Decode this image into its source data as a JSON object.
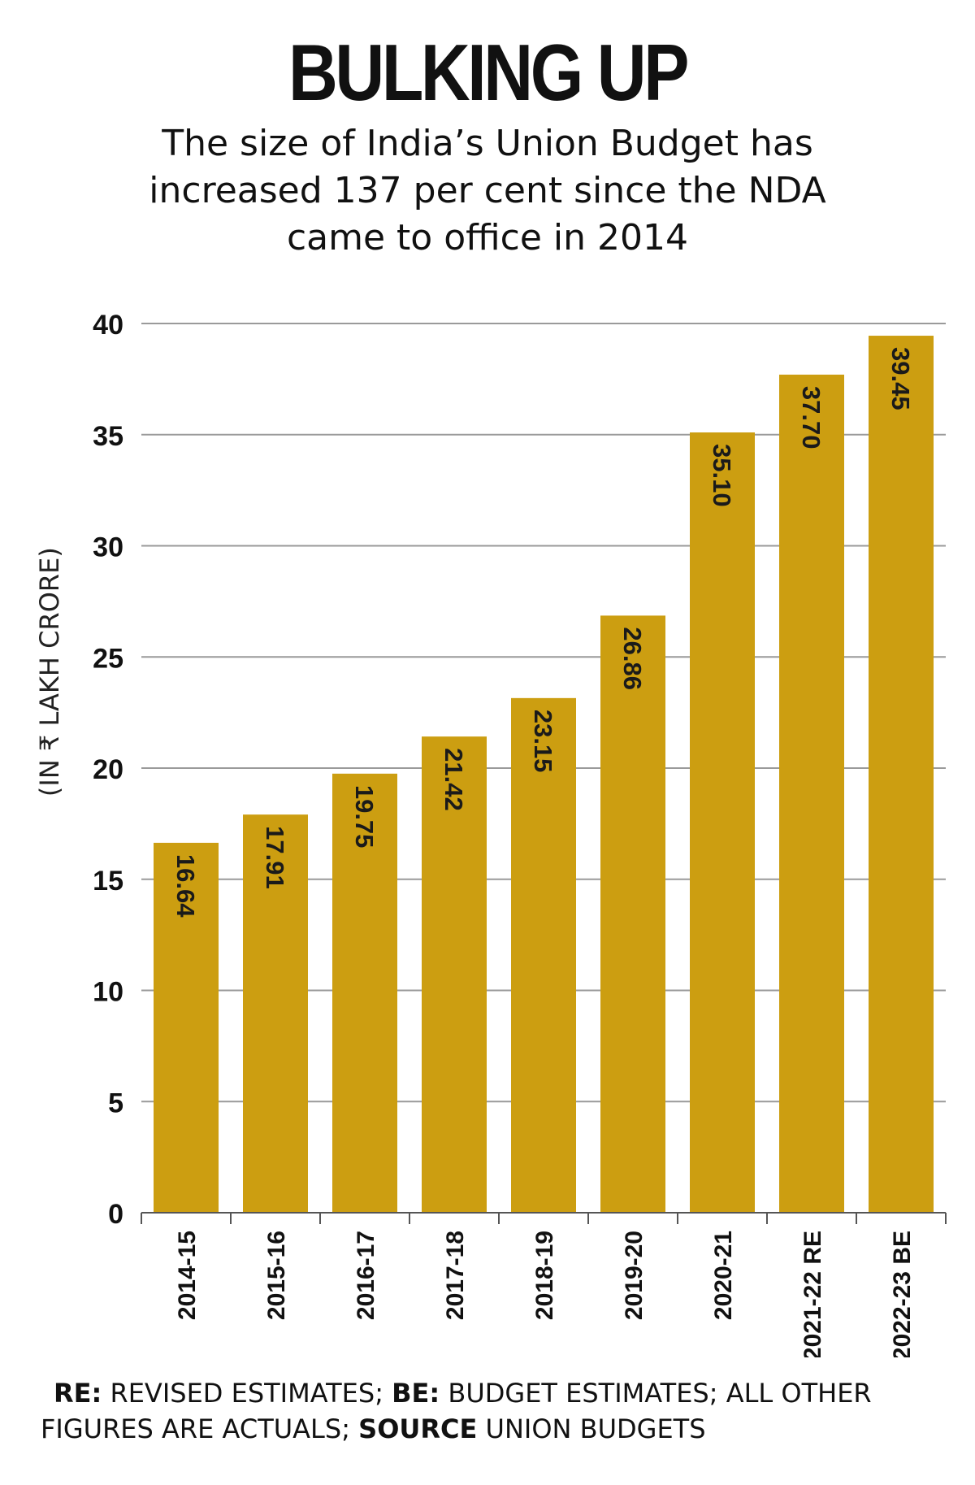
{
  "title": "BULKING UP",
  "subtitle": "The size of India’s Union Budget has increased 137 per cent since the NDA came to office in 2014",
  "footnote": {
    "re_key": "RE:",
    "re_text": " REVISED ESTIMATES; ",
    "be_key": "BE:",
    "be_text": " BUDGET ESTIMATES; ALL OTHER FIGURES ARE ACTUALS; ",
    "source_key": "SOURCE",
    "source_text": " UNION BUDGETS"
  },
  "chart_data": {
    "type": "bar",
    "categories": [
      "2014-15",
      "2015-16",
      "2016-17",
      "2017-18",
      "2018-19",
      "2019-20",
      "2020-21",
      "2021-22 RE",
      "2022-23 BE"
    ],
    "values": [
      16.64,
      17.91,
      19.75,
      21.42,
      23.15,
      26.86,
      35.1,
      37.7,
      39.45
    ],
    "value_labels": [
      "16.64",
      "17.91",
      "19.75",
      "21.42",
      "23.15",
      "26.86",
      "35.10",
      "37.70",
      "39.45"
    ],
    "ylabel": "(IN ₹ LAKH CRORE)",
    "ylim": [
      0,
      40
    ],
    "yticks": [
      0,
      5,
      10,
      15,
      20,
      25,
      30,
      35,
      40
    ],
    "grid": true,
    "bar_color": "#CC9E11",
    "grid_color": "#9a9a9a"
  }
}
